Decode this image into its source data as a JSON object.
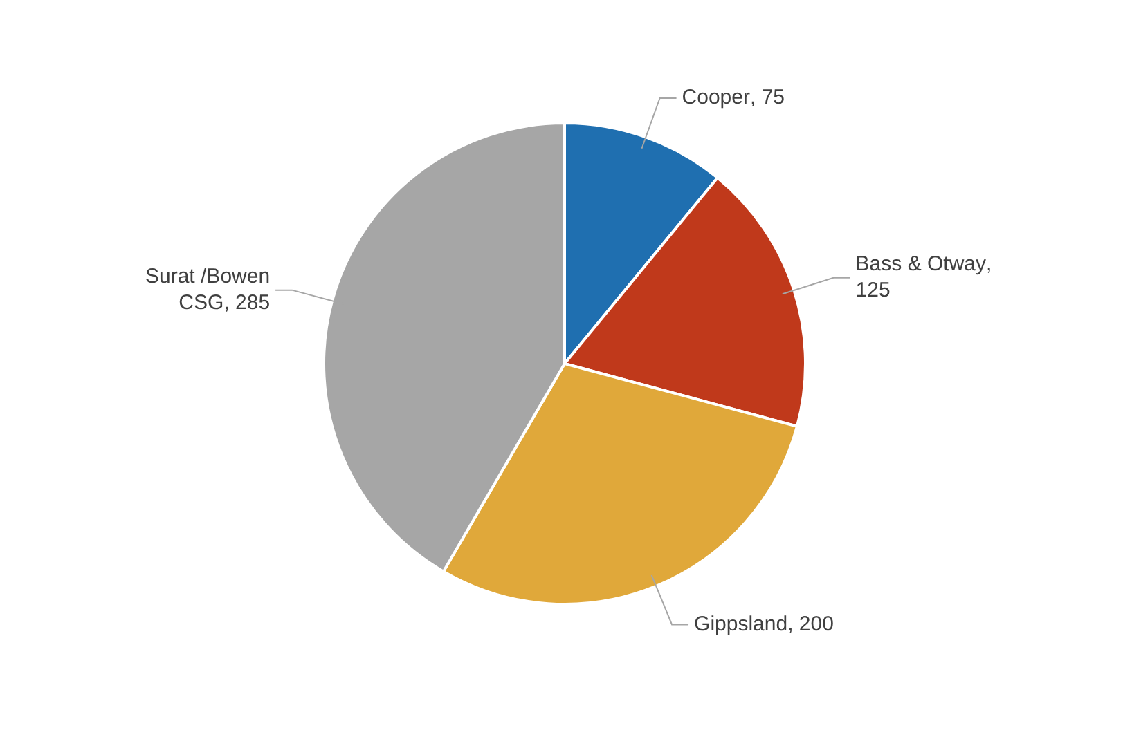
{
  "chart_data": {
    "type": "pie",
    "categories": [
      "Cooper",
      "Bass & Otway",
      "Gippsland",
      "Surat /Bowen CSG"
    ],
    "values": [
      75,
      125,
      200,
      285
    ],
    "value_labels": [
      ", 75",
      ", 125",
      ", 200",
      ", 285"
    ],
    "colors": [
      "#1f6fb0",
      "#c0391b",
      "#e0a83a",
      "#a6a6a6"
    ],
    "legend": false
  }
}
